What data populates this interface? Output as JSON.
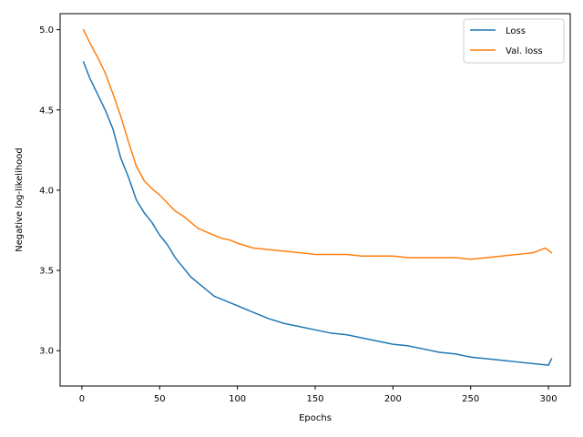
{
  "chart_data": {
    "type": "line",
    "title": "",
    "xlabel": "Epochs",
    "ylabel": "Negative log-likelihood",
    "xlim": [
      -14,
      314
    ],
    "ylim": [
      2.78,
      5.1
    ],
    "xticks": [
      0,
      50,
      100,
      150,
      200,
      250,
      300
    ],
    "yticks": [
      3.0,
      3.5,
      4.0,
      4.5,
      5.0
    ],
    "ytick_labels": [
      "3.0",
      "3.5",
      "4.0",
      "4.5",
      "5.0"
    ],
    "grid": false,
    "legend_position": "top-right",
    "series": [
      {
        "name": "Loss",
        "color": "#1f77b4",
        "points": [
          [
            1,
            4.8
          ],
          [
            5,
            4.7
          ],
          [
            10,
            4.6
          ],
          [
            15,
            4.5
          ],
          [
            20,
            4.38
          ],
          [
            25,
            4.2
          ],
          [
            30,
            4.08
          ],
          [
            35,
            3.94
          ],
          [
            40,
            3.86
          ],
          [
            45,
            3.8
          ],
          [
            50,
            3.72
          ],
          [
            55,
            3.66
          ],
          [
            60,
            3.58
          ],
          [
            65,
            3.52
          ],
          [
            70,
            3.46
          ],
          [
            75,
            3.42
          ],
          [
            80,
            3.38
          ],
          [
            85,
            3.34
          ],
          [
            90,
            3.32
          ],
          [
            95,
            3.3
          ],
          [
            100,
            3.28
          ],
          [
            110,
            3.24
          ],
          [
            120,
            3.2
          ],
          [
            130,
            3.17
          ],
          [
            140,
            3.15
          ],
          [
            150,
            3.13
          ],
          [
            160,
            3.11
          ],
          [
            170,
            3.1
          ],
          [
            180,
            3.08
          ],
          [
            190,
            3.06
          ],
          [
            200,
            3.04
          ],
          [
            210,
            3.03
          ],
          [
            220,
            3.01
          ],
          [
            230,
            2.99
          ],
          [
            240,
            2.98
          ],
          [
            250,
            2.96
          ],
          [
            260,
            2.95
          ],
          [
            270,
            2.94
          ],
          [
            280,
            2.93
          ],
          [
            290,
            2.92
          ],
          [
            300,
            2.91
          ],
          [
            302,
            2.95
          ]
        ]
      },
      {
        "name": "Val. loss",
        "color": "#ff7f0e",
        "points": [
          [
            1,
            5.0
          ],
          [
            5,
            4.92
          ],
          [
            10,
            4.83
          ],
          [
            15,
            4.73
          ],
          [
            20,
            4.6
          ],
          [
            25,
            4.46
          ],
          [
            30,
            4.3
          ],
          [
            35,
            4.15
          ],
          [
            40,
            4.06
          ],
          [
            45,
            4.01
          ],
          [
            50,
            3.97
          ],
          [
            55,
            3.92
          ],
          [
            60,
            3.87
          ],
          [
            65,
            3.84
          ],
          [
            70,
            3.8
          ],
          [
            75,
            3.76
          ],
          [
            80,
            3.74
          ],
          [
            85,
            3.72
          ],
          [
            90,
            3.7
          ],
          [
            95,
            3.69
          ],
          [
            100,
            3.67
          ],
          [
            110,
            3.64
          ],
          [
            120,
            3.63
          ],
          [
            130,
            3.62
          ],
          [
            140,
            3.61
          ],
          [
            150,
            3.6
          ],
          [
            160,
            3.6
          ],
          [
            170,
            3.6
          ],
          [
            180,
            3.59
          ],
          [
            190,
            3.59
          ],
          [
            200,
            3.59
          ],
          [
            210,
            3.58
          ],
          [
            220,
            3.58
          ],
          [
            230,
            3.58
          ],
          [
            240,
            3.58
          ],
          [
            250,
            3.57
          ],
          [
            260,
            3.58
          ],
          [
            270,
            3.59
          ],
          [
            280,
            3.6
          ],
          [
            290,
            3.61
          ],
          [
            298,
            3.64
          ],
          [
            302,
            3.61
          ]
        ]
      }
    ]
  }
}
